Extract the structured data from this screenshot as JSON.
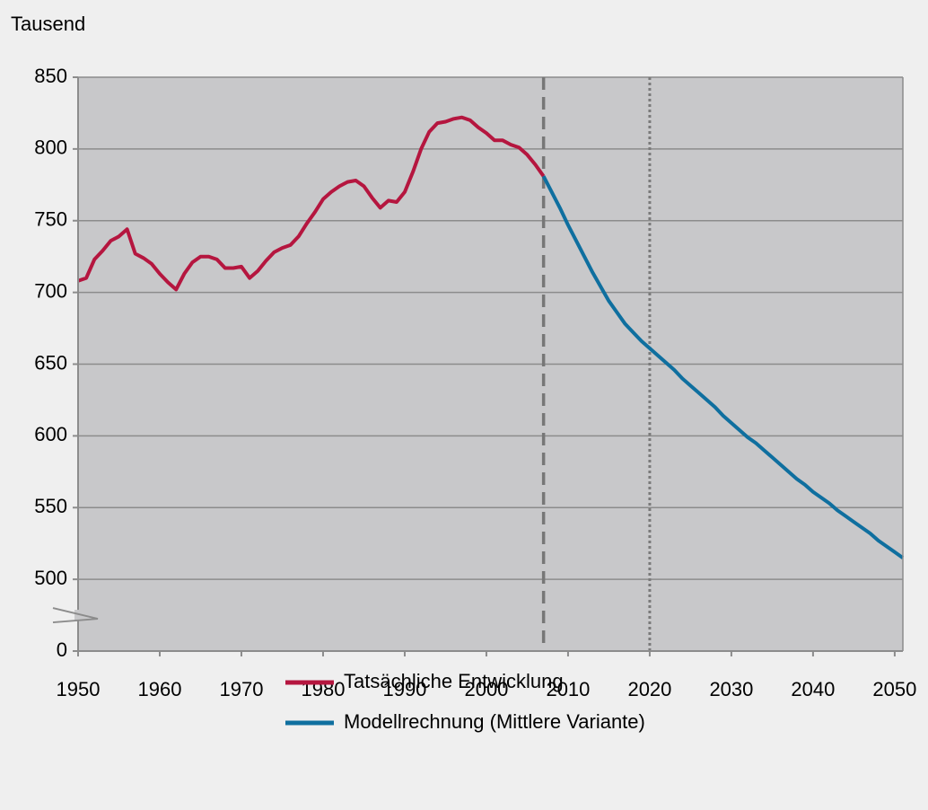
{
  "chart_data": {
    "type": "line",
    "ylabel": "Tausend",
    "x": [
      1950,
      1951,
      1952,
      1953,
      1954,
      1955,
      1956,
      1957,
      1958,
      1959,
      1960,
      1961,
      1962,
      1963,
      1964,
      1965,
      1966,
      1967,
      1968,
      1969,
      1970,
      1971,
      1972,
      1973,
      1974,
      1975,
      1976,
      1977,
      1978,
      1979,
      1980,
      1981,
      1982,
      1983,
      1984,
      1985,
      1986,
      1987,
      1988,
      1989,
      1990,
      1991,
      1992,
      1993,
      1994,
      1995,
      1996,
      1997,
      1998,
      1999,
      2000,
      2001,
      2002,
      2003,
      2004,
      2005,
      2006,
      2007,
      2008,
      2009,
      2010,
      2011,
      2012,
      2013,
      2014,
      2015,
      2016,
      2017,
      2018,
      2019,
      2020,
      2021,
      2022,
      2023,
      2024,
      2025,
      2026,
      2027,
      2028,
      2029,
      2030,
      2031,
      2032,
      2033,
      2034,
      2035,
      2036,
      2037,
      2038,
      2039,
      2040,
      2041,
      2042,
      2043,
      2044,
      2045,
      2046,
      2047,
      2048,
      2049,
      2050,
      2051
    ],
    "series": [
      {
        "name": "Tatsächliche Entwicklung",
        "color": "#b5163f",
        "values": [
          708,
          710,
          723,
          729,
          736,
          739,
          744,
          727,
          724,
          720,
          713,
          707,
          702,
          713,
          721,
          725,
          725,
          723,
          717,
          717,
          718,
          710,
          715,
          722,
          728,
          731,
          733,
          739,
          748,
          756,
          765,
          770,
          774,
          777,
          778,
          774,
          766,
          759,
          764,
          763,
          770,
          784,
          800,
          812,
          818,
          819,
          821,
          822,
          820,
          815,
          811,
          806,
          806,
          803,
          801,
          796,
          789,
          781,
          null,
          null,
          null,
          null,
          null,
          null,
          null,
          null,
          null,
          null,
          null,
          null,
          null,
          null,
          null,
          null,
          null,
          null,
          null,
          null,
          null,
          null,
          null,
          null,
          null,
          null,
          null,
          null,
          null,
          null,
          null,
          null,
          null,
          null,
          null,
          null,
          null,
          null,
          null,
          null,
          null,
          null,
          null,
          null
        ]
      },
      {
        "name": "Modellrechnung (Mittlere Variante)",
        "color": "#0f6f9f",
        "values": [
          null,
          null,
          null,
          null,
          null,
          null,
          null,
          null,
          null,
          null,
          null,
          null,
          null,
          null,
          null,
          null,
          null,
          null,
          null,
          null,
          null,
          null,
          null,
          null,
          null,
          null,
          null,
          null,
          null,
          null,
          null,
          null,
          null,
          null,
          null,
          null,
          null,
          null,
          null,
          null,
          null,
          null,
          null,
          null,
          null,
          null,
          null,
          null,
          null,
          null,
          null,
          null,
          null,
          null,
          null,
          null,
          null,
          781,
          770,
          759,
          747,
          736,
          725,
          714,
          704,
          694,
          686,
          678,
          672,
          666,
          661,
          656,
          651,
          646,
          640,
          635,
          630,
          625,
          620,
          614,
          609,
          604,
          599,
          595,
          590,
          585,
          580,
          575,
          570,
          566,
          561,
          557,
          553,
          548,
          544,
          540,
          536,
          532,
          527,
          523,
          519,
          515
        ]
      }
    ],
    "xlim": [
      1950,
      2051
    ],
    "xticks": [
      1950,
      1960,
      1970,
      1980,
      1990,
      2000,
      2010,
      2020,
      2030,
      2040,
      2050
    ],
    "ylim": [
      0,
      850
    ],
    "yticks": [
      0,
      500,
      550,
      600,
      650,
      700,
      750,
      800,
      850
    ],
    "y_axis_break": true,
    "grid": true,
    "vlines": [
      {
        "x": 2007,
        "style": "dashed"
      },
      {
        "x": 2020,
        "style": "dotted"
      }
    ],
    "legend": "bottom"
  }
}
